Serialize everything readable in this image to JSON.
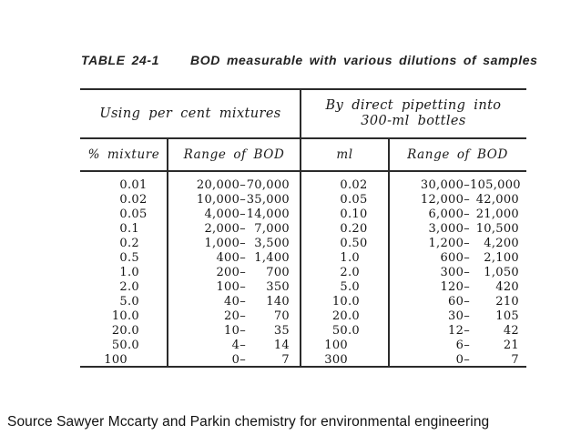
{
  "title": {
    "label": "TABLE 24-1",
    "caption": "BOD measurable with various dilutions of samples"
  },
  "table": {
    "group_headers": {
      "left": "Using per cent mixtures",
      "right_line1": "By direct pipetting into",
      "right_line2": "300-ml bottles"
    },
    "columns": [
      "% mixture",
      "Range of BOD",
      "ml",
      "Range of BOD"
    ],
    "range_separator": "–",
    "rows": [
      {
        "pct": "0.01",
        "bod_low": "20,000",
        "bod_high": "70,000",
        "ml": "0.02",
        "ml_bod_low": "30,000",
        "ml_bod_high": "105,000"
      },
      {
        "pct": "0.02",
        "bod_low": "10,000",
        "bod_high": "35,000",
        "ml": "0.05",
        "ml_bod_low": "12,000",
        "ml_bod_high": "42,000"
      },
      {
        "pct": "0.05",
        "bod_low": "4,000",
        "bod_high": "14,000",
        "ml": "0.10",
        "ml_bod_low": "6,000",
        "ml_bod_high": "21,000"
      },
      {
        "pct": "0.1",
        "bod_low": "2,000",
        "bod_high": "7,000",
        "ml": "0.20",
        "ml_bod_low": "3,000",
        "ml_bod_high": "10,500"
      },
      {
        "pct": "0.2",
        "bod_low": "1,000",
        "bod_high": "3,500",
        "ml": "0.50",
        "ml_bod_low": "1,200",
        "ml_bod_high": "4,200"
      },
      {
        "pct": "0.5",
        "bod_low": "400",
        "bod_high": "1,400",
        "ml": "1.0",
        "ml_bod_low": "600",
        "ml_bod_high": "2,100"
      },
      {
        "pct": "1.0",
        "bod_low": "200",
        "bod_high": "700",
        "ml": "2.0",
        "ml_bod_low": "300",
        "ml_bod_high": "1,050"
      },
      {
        "pct": "2.0",
        "bod_low": "100",
        "bod_high": "350",
        "ml": "5.0",
        "ml_bod_low": "120",
        "ml_bod_high": "420"
      },
      {
        "pct": "5.0",
        "bod_low": "40",
        "bod_high": "140",
        "ml": "10.0",
        "ml_bod_low": "60",
        "ml_bod_high": "210"
      },
      {
        "pct": "10.0",
        "bod_low": "20",
        "bod_high": "70",
        "ml": "20.0",
        "ml_bod_low": "30",
        "ml_bod_high": "105"
      },
      {
        "pct": "20.0",
        "bod_low": "10",
        "bod_high": "35",
        "ml": "50.0",
        "ml_bod_low": "12",
        "ml_bod_high": "42"
      },
      {
        "pct": "50.0",
        "bod_low": "4",
        "bod_high": "14",
        "ml": "100",
        "ml_bod_low": "6",
        "ml_bod_high": "21"
      },
      {
        "pct": "100",
        "bod_low": "0",
        "bod_high": "7",
        "ml": "300",
        "ml_bod_low": "0",
        "ml_bod_high": "7"
      }
    ]
  },
  "source": "Source Sawyer Mccarty and Parkin chemistry for environmental engineering"
}
